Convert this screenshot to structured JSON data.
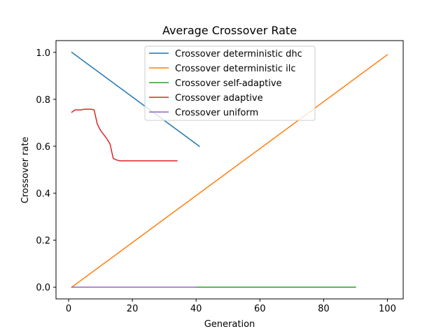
{
  "chart_data": {
    "type": "line",
    "title": "Average Crossover Rate",
    "xlabel": "Generation",
    "ylabel": "Crossover rate",
    "xlim": [
      -3.95,
      104.95
    ],
    "ylim": [
      -0.05,
      1.05
    ],
    "xticks": [
      0,
      20,
      40,
      60,
      80,
      100
    ],
    "yticks": [
      0.0,
      0.2,
      0.4,
      0.6,
      0.8,
      1.0
    ],
    "xtick_labels": [
      "0",
      "20",
      "40",
      "60",
      "80",
      "100"
    ],
    "ytick_labels": [
      "0.0",
      "0.2",
      "0.4",
      "0.6",
      "0.8",
      "1.0"
    ],
    "grid": false,
    "legend_position": "top-center",
    "series": [
      {
        "name": "Crossover deterministic dhc",
        "color": "#1f77b4",
        "x": [
          1,
          41
        ],
        "y": [
          1.0,
          0.6
        ]
      },
      {
        "name": "Crossover deterministic ilc",
        "color": "#ff7f0e",
        "x": [
          1,
          100
        ],
        "y": [
          0.0,
          0.99
        ]
      },
      {
        "name": "Crossover self-adaptive",
        "color": "#2ca02c",
        "x": [
          1,
          90
        ],
        "y": [
          0.0,
          0.0
        ]
      },
      {
        "name": "Crossover adaptive",
        "color": "#d62728",
        "x": [
          1,
          2,
          3,
          4,
          5,
          6,
          7,
          8,
          9,
          10,
          11,
          12,
          13,
          14,
          15,
          16,
          17,
          20,
          25,
          30,
          34
        ],
        "y": [
          0.745,
          0.755,
          0.755,
          0.755,
          0.758,
          0.758,
          0.758,
          0.755,
          0.695,
          0.668,
          0.65,
          0.632,
          0.61,
          0.548,
          0.542,
          0.538,
          0.538,
          0.538,
          0.538,
          0.538,
          0.538
        ]
      },
      {
        "name": "Crossover uniform",
        "color": "#9467bd",
        "x": [
          1,
          40
        ],
        "y": [
          0.0,
          0.0
        ]
      }
    ]
  }
}
